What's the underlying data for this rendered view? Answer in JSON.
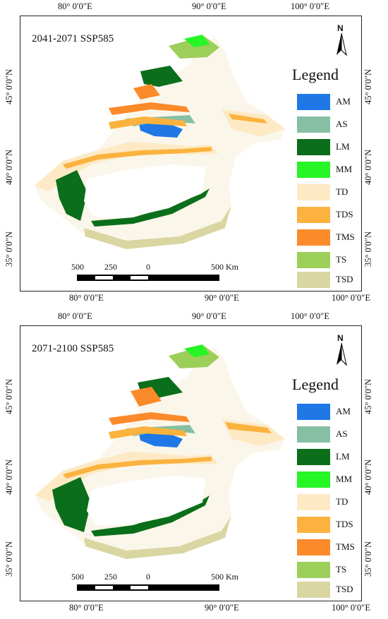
{
  "panels": [
    {
      "id": "p1",
      "title": "2041-2071 SSP585",
      "top_ticks": [
        "80° 0′0″E",
        "90° 0′0″E",
        "100° 0′0″E"
      ],
      "bottom_ticks": [
        "80° 0′0″E",
        "90° 0′0″E",
        "100° 0′0″E"
      ],
      "left_ticks": [
        "45° 0′0″N",
        "40° 0′0″N",
        "35° 0′0″N"
      ],
      "right_ticks": [
        "45° 0′0″N",
        "40° 0′0″N",
        "35° 0′0″N"
      ]
    },
    {
      "id": "p2",
      "title": "2071-2100 SSP585",
      "top_ticks": [
        "80° 0′0″E",
        "90° 0′0″E",
        "100° 0′0″E"
      ],
      "bottom_ticks": [
        "80° 0′0″E",
        "90° 0′0″E",
        "100° 0′0″E"
      ],
      "left_ticks": [
        "45° 0′0″N",
        "40° 0′0″N",
        "35° 0′0″N"
      ],
      "right_ticks": [
        "45° 0′0″N",
        "40° 0′0″N",
        "35° 0′0″N"
      ]
    }
  ],
  "legend": {
    "title": "Legend",
    "items": [
      {
        "label": "AM",
        "color": "#1f78e6"
      },
      {
        "label": "AS",
        "color": "#86bfa3"
      },
      {
        "label": "LM",
        "color": "#0b6e1a"
      },
      {
        "label": "MM",
        "color": "#26f526"
      },
      {
        "label": "TD",
        "color": "#fde9c4"
      },
      {
        "label": "TDS",
        "color": "#fbb23e"
      },
      {
        "label": "TMS",
        "color": "#fb8a2a"
      },
      {
        "label": "TS",
        "color": "#9ccf5a"
      },
      {
        "label": "TSD",
        "color": "#d9d6a2"
      }
    ]
  },
  "north_arrow": {
    "letter": "N"
  },
  "scale": {
    "labels": [
      "500",
      "250",
      "0",
      "500 Km"
    ]
  }
}
